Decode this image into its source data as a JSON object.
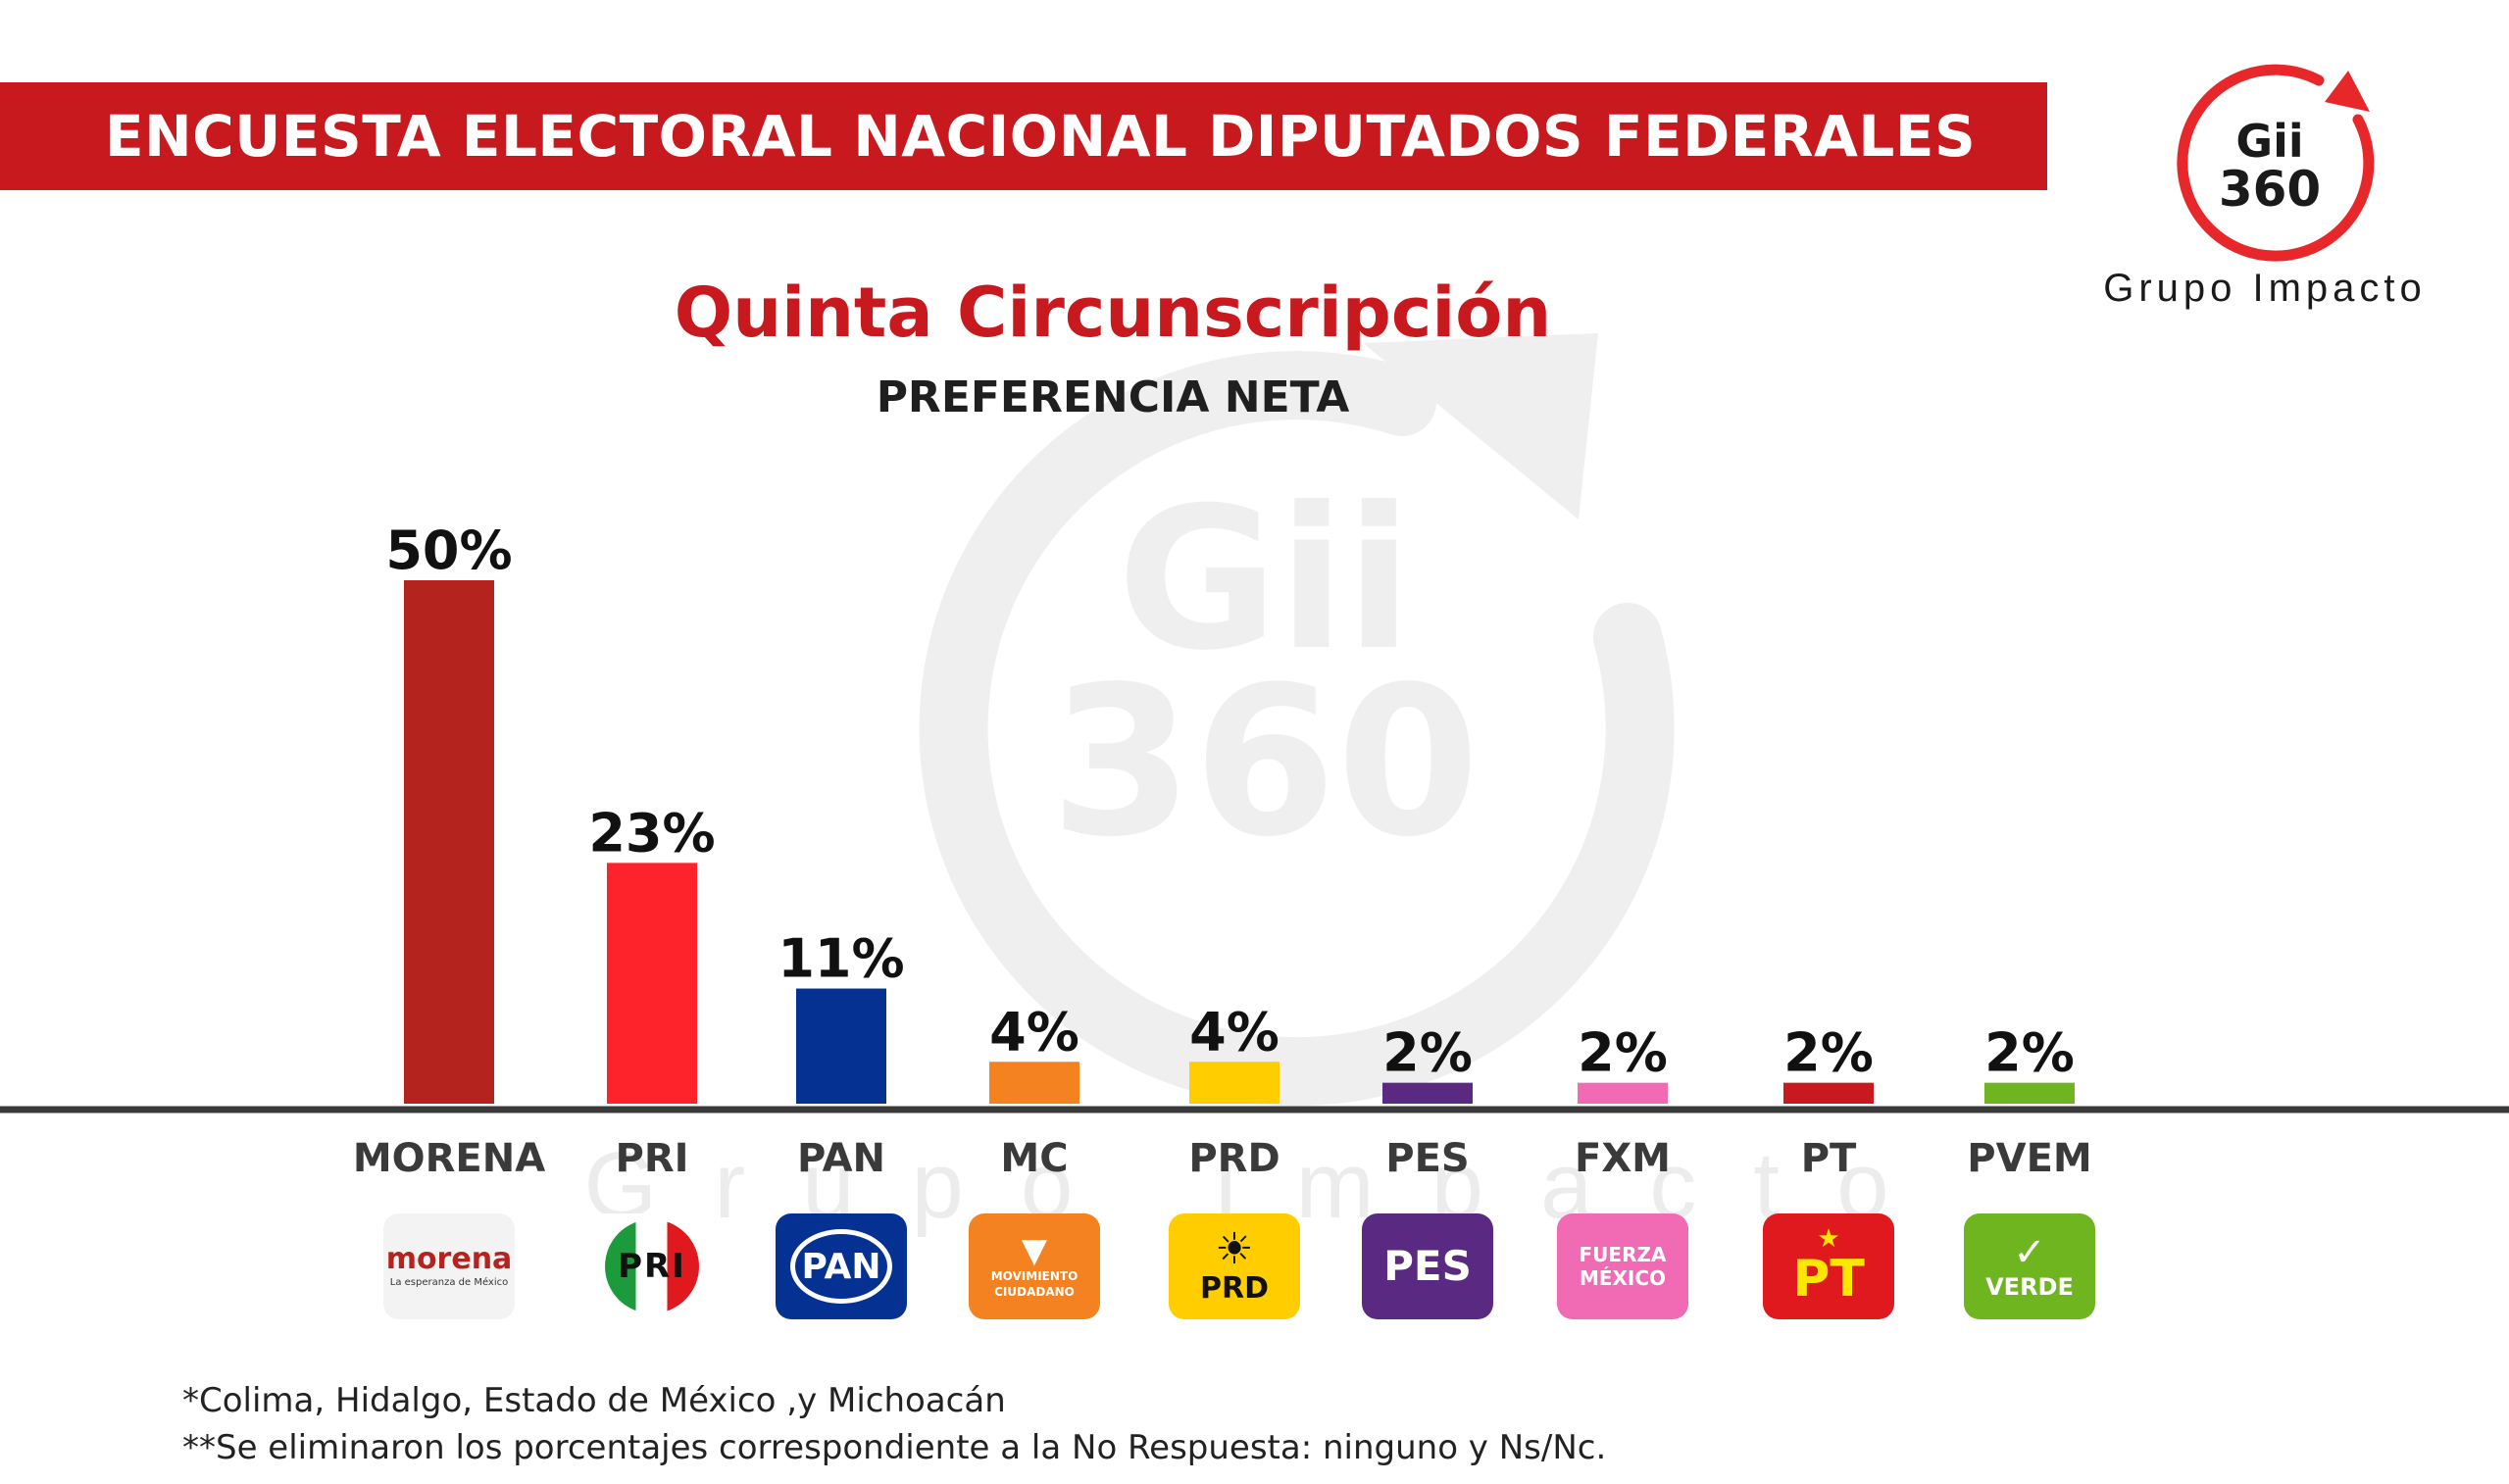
{
  "header": {
    "title": "ENCUESTA ELECTORAL NACIONAL DIPUTADOS FEDERALES"
  },
  "brand": {
    "logo_line1": "Gii",
    "logo_line2": "360",
    "caption": "Grupo Impacto",
    "watermark_text": "Grupo Impacto",
    "accent_color": "#e8272a"
  },
  "chart_data": {
    "type": "bar",
    "title": "Quinta Circunscripción",
    "subtitle": "PREFERENCIA NETA",
    "categories": [
      "MORENA",
      "PRI",
      "PAN",
      "MC",
      "PRD",
      "PES",
      "FXM",
      "PT",
      "PVEM"
    ],
    "values": [
      50,
      23,
      11,
      4,
      4,
      2,
      2,
      2,
      2
    ],
    "value_labels": [
      "50%",
      "23%",
      "11%",
      "4%",
      "4%",
      "2%",
      "2%",
      "2%",
      "2%"
    ],
    "colors": [
      "#b5231f",
      "#fe232a",
      "#053193",
      "#f58220",
      "#ffcd00",
      "#5a2a82",
      "#f06ab4",
      "#c8191e",
      "#6fb520"
    ],
    "ylim": [
      0,
      50
    ],
    "grid": false,
    "legend": "none"
  },
  "party_logos": [
    {
      "party": "MORENA",
      "lines": [
        "morena",
        "La esperanza de México"
      ]
    },
    {
      "party": "PRI",
      "lines": [
        "PRI"
      ]
    },
    {
      "party": "PAN",
      "lines": [
        "PAN"
      ]
    },
    {
      "party": "MC",
      "lines": [
        "MOVIMIENTO",
        "CIUDADANO"
      ]
    },
    {
      "party": "PRD",
      "lines": [
        "PRD"
      ]
    },
    {
      "party": "PES",
      "lines": [
        "PES"
      ]
    },
    {
      "party": "FXM",
      "lines": [
        "FUERZA",
        "MÉXICO"
      ]
    },
    {
      "party": "PT",
      "lines": [
        "PT"
      ]
    },
    {
      "party": "PVEM",
      "lines": [
        "VERDE"
      ]
    }
  ],
  "footnotes": [
    "*Colima, Hidalgo, Estado de México ,y Michoacán",
    "**Se eliminaron los porcentajes correspondiente a la No Respuesta: ninguno y Ns/Nc."
  ]
}
